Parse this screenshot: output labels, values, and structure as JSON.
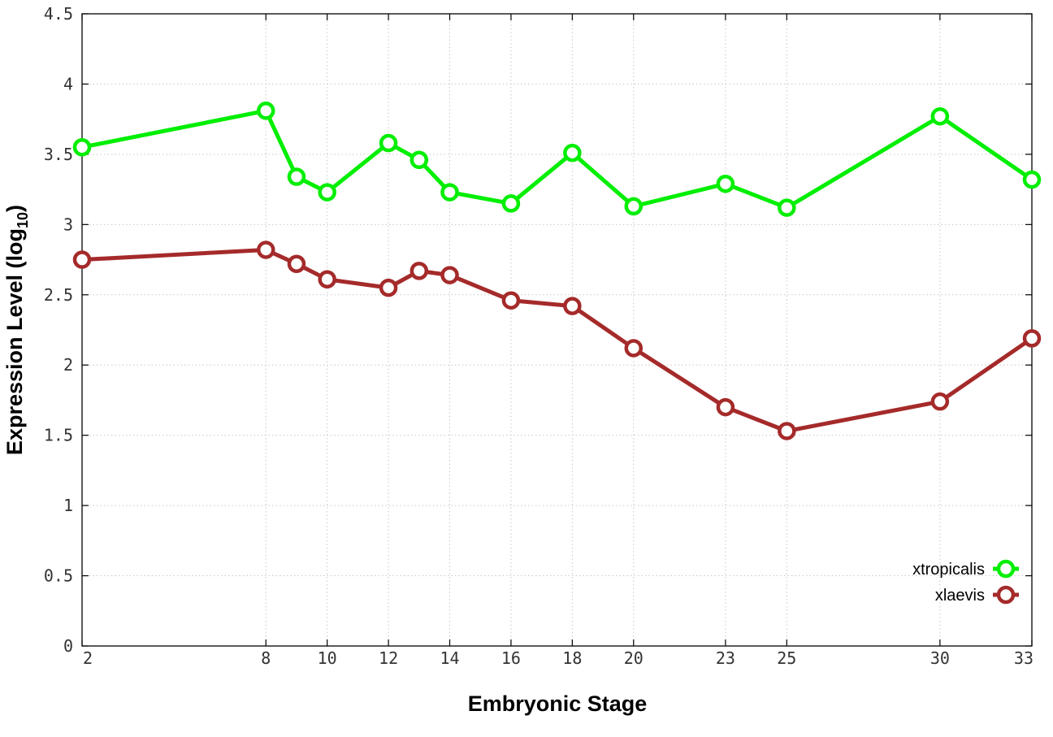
{
  "chart_data": {
    "type": "line",
    "xlabel": "Embryonic Stage",
    "ylabel": "Expression Level (log",
    "ylabel_sub": "10",
    "ylabel_close": ")",
    "x_ticks": [
      2,
      8,
      10,
      12,
      14,
      16,
      18,
      20,
      23,
      25,
      30,
      33
    ],
    "y_ticks": [
      "0",
      "0.5",
      "1",
      "1.5",
      "2",
      "2.5",
      "3",
      "3.5",
      "4",
      "4.5"
    ],
    "xlim": [
      2,
      33
    ],
    "ylim": [
      0,
      4.5
    ],
    "grid": true,
    "legend_position": "bottom-right",
    "x": [
      2,
      8,
      9,
      10,
      12,
      13,
      14,
      16,
      18,
      20,
      23,
      25,
      30,
      33
    ],
    "series": [
      {
        "name": "xtropicalis",
        "color": "#00ee00",
        "values": [
          3.55,
          3.81,
          3.34,
          3.23,
          3.58,
          3.46,
          3.23,
          3.15,
          3.51,
          3.13,
          3.29,
          3.12,
          3.77,
          3.32
        ]
      },
      {
        "name": "xlaevis",
        "color": "#a52a2a",
        "values": [
          2.75,
          2.82,
          2.72,
          2.61,
          2.55,
          2.67,
          2.64,
          2.46,
          2.42,
          2.12,
          1.7,
          1.53,
          1.74,
          2.19
        ]
      }
    ]
  }
}
